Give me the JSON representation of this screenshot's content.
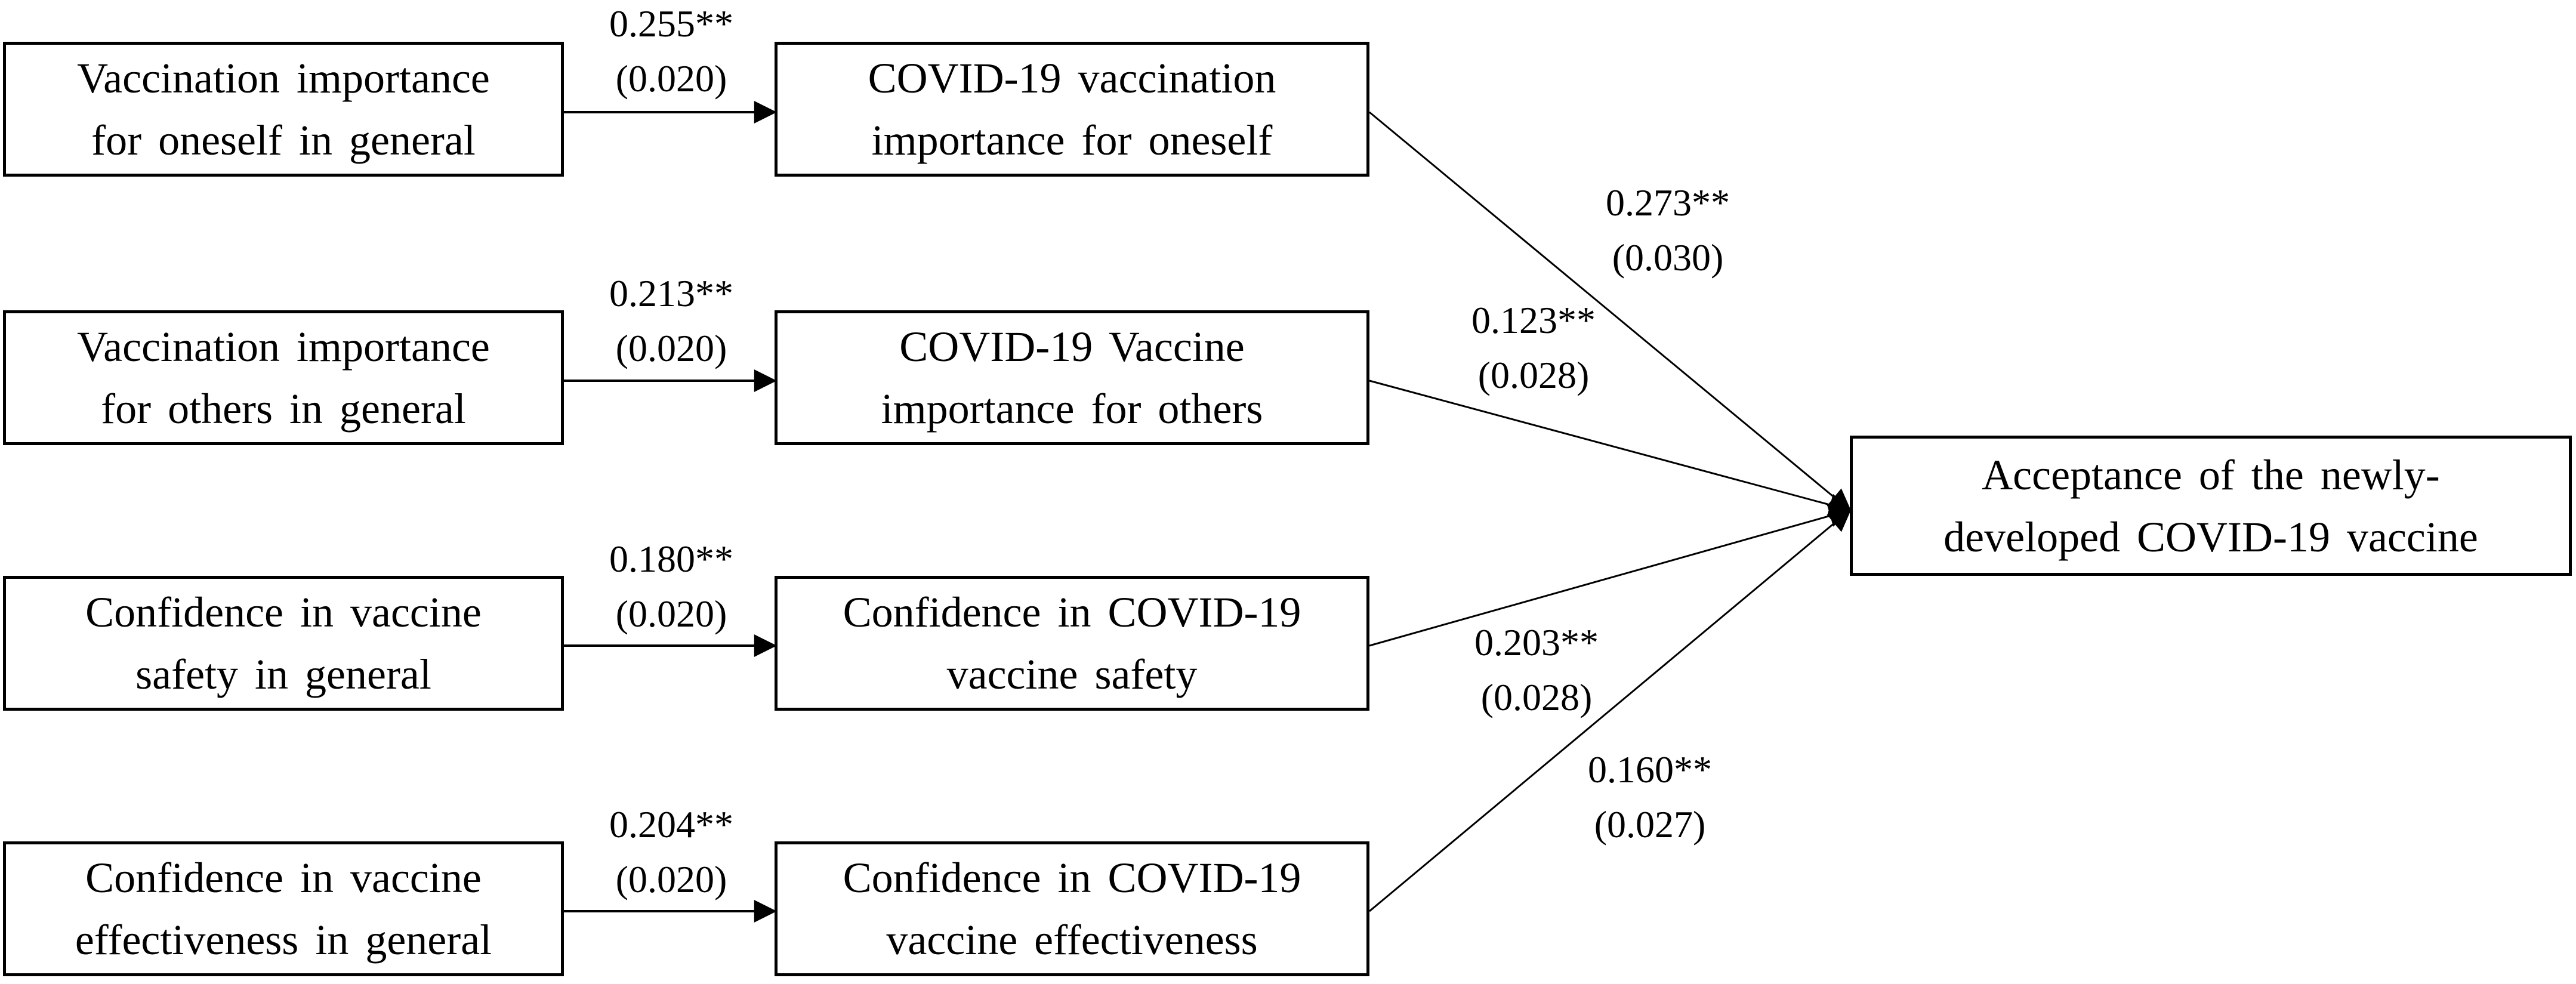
{
  "nodes": {
    "general_oneself": {
      "text": "Vaccination  importance\nfor oneself  in general"
    },
    "general_others": {
      "text": "Vaccination  importance\nfor others  in general"
    },
    "general_safety": {
      "text": "Confidence  in vaccine\nsafety  in general"
    },
    "general_effectiveness": {
      "text": "Confidence  in vaccine\neffectiveness  in general"
    },
    "covid_oneself": {
      "text": "COVID-19  vaccination\nimportance  for oneself"
    },
    "covid_others": {
      "text": "COVID-19  Vaccine\nimportance  for others"
    },
    "covid_safety": {
      "text": "Confidence  in COVID-19\nvaccine  safety"
    },
    "covid_effectiveness": {
      "text": "Confidence  in COVID-19\nvaccine  effectiveness"
    },
    "acceptance": {
      "text": "Acceptance  of the newly-\ndeveloped  COVID-19  vaccine"
    }
  },
  "paths": {
    "oneself_general_to_covid": {
      "coef": "0.255**",
      "se": "(0.020)"
    },
    "others_general_to_covid": {
      "coef": "0.213**",
      "se": "(0.020)"
    },
    "safety_general_to_covid": {
      "coef": "0.180**",
      "se": "(0.020)"
    },
    "effectiveness_general_to_covid": {
      "coef": "0.204**",
      "se": "(0.020)"
    },
    "oneself_to_acceptance": {
      "coef": "0.273**",
      "se": "(0.030)"
    },
    "others_to_acceptance": {
      "coef": "0.123**",
      "se": "(0.028)"
    },
    "safety_to_acceptance": {
      "coef": "0.203**",
      "se": "(0.028)"
    },
    "effectiveness_to_acceptance": {
      "coef": "0.160**",
      "se": "(0.027)"
    }
  }
}
